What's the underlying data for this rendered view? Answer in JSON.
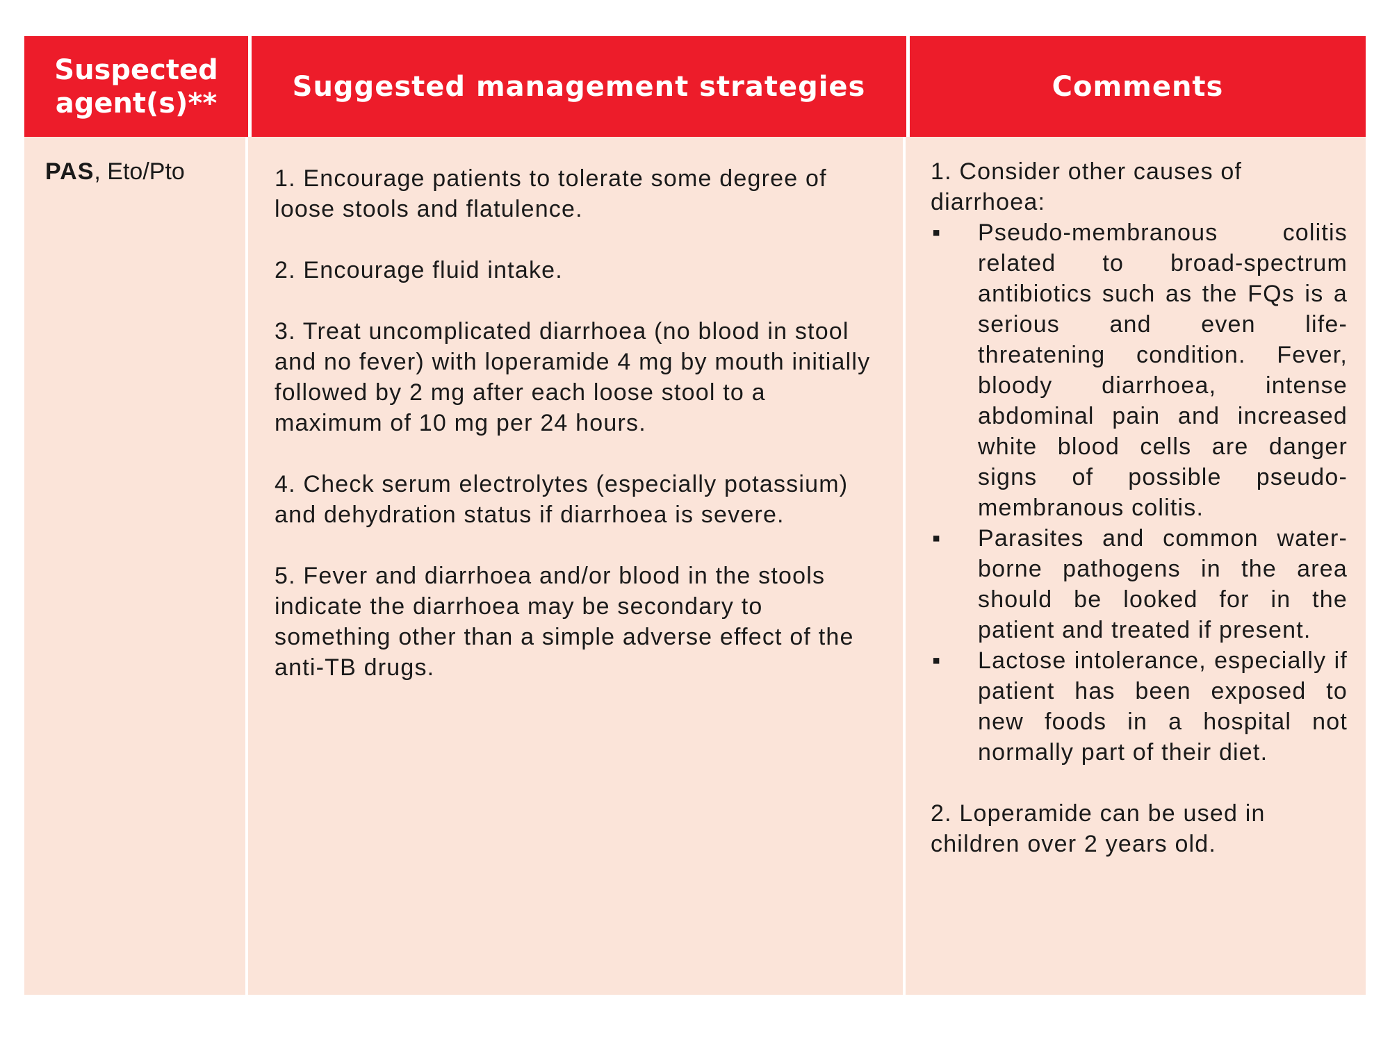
{
  "table": {
    "headers": {
      "agents": [
        "Suspected",
        "agent(s)**"
      ],
      "strategies": "Suggested management strategies",
      "comments": "Comments"
    },
    "agents": {
      "primary": "PAS",
      "secondary": ", Eto/Pto"
    },
    "strategies": [
      "1. Encourage patients to tolerate some degree of loose stools and flatulence.",
      "2. Encourage fluid intake.",
      "3. Treat uncomplicated diarrhoea (no blood in stool and no fever) with loperamide 4 mg by mouth initially followed by 2 mg after each loose stool to a maximum of 10 mg per 24 hours.",
      "4. Check serum electrolytes (especially potassium) and dehydration status if diarrhoea is severe.",
      "5. Fever and diarrhoea and/or blood in the stools indicate the diarrhoea may be secondary to something other than a simple adverse effect of the anti-TB drugs."
    ],
    "comments": {
      "lead": "1. Consider other causes of diarrhoea:",
      "bullet_symbol": "▪",
      "bullets": [
        "Pseudo-membranous colitis related to broad-spectrum antibiotics such as the FQs is a serious and even life-threatening condition. Fever, bloody diarrhoea, intense abdominal pain and increased white blood cells are danger signs of possible pseudo-membranous colitis.",
        "Parasites and common water-borne pathogens in the area should be looked for in the patient and treated if present.",
        "Lactose intolerance, especially if patient has been exposed to new foods in a hospital not normally part of their diet."
      ],
      "last": "2. Loperamide can be used in children over 2 years old."
    }
  }
}
